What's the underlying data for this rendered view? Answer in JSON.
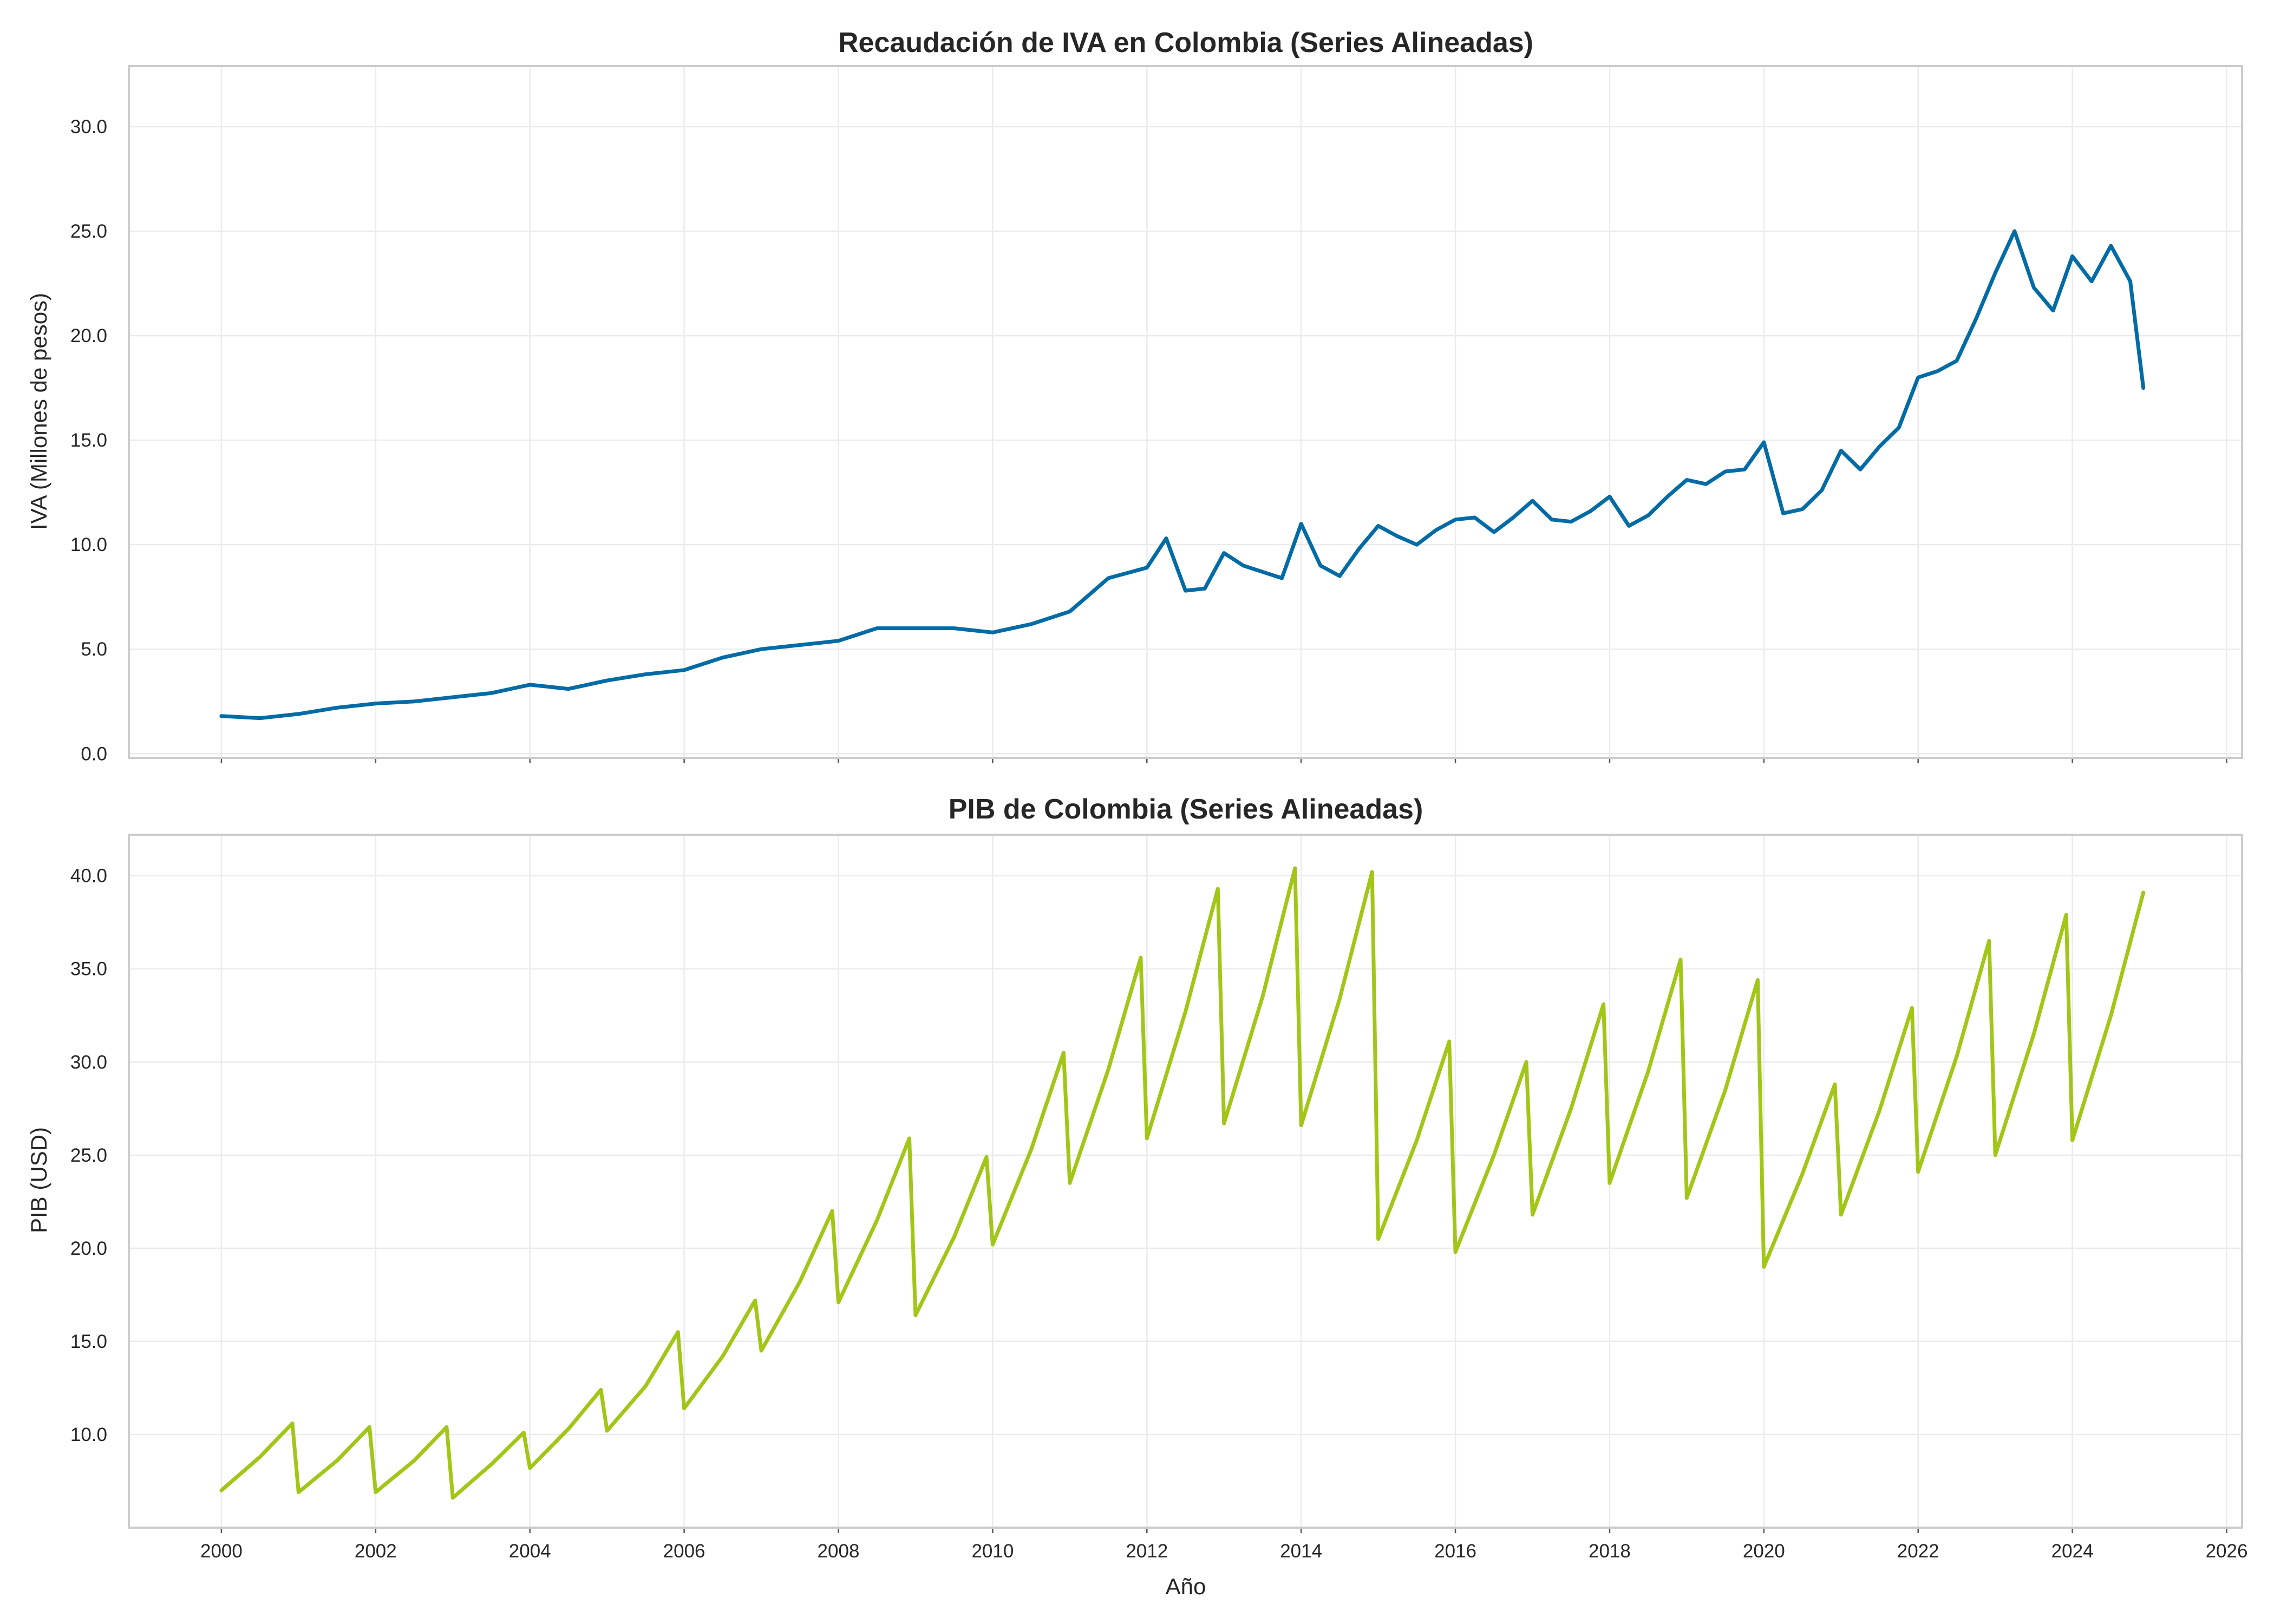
{
  "chart_data": [
    {
      "type": "line",
      "title": "Recaudación de IVA en Colombia (Series Alineadas)",
      "xlabel": "",
      "ylabel": "IVA (Millones de pesos)",
      "xlim": [
        1998.8,
        2026.2
      ],
      "ylim": [
        -0.2,
        32.9
      ],
      "grid": true,
      "color": "#006BA4",
      "yticks": [
        "0.0",
        "5.0",
        "10.0",
        "15.0",
        "20.0",
        "25.0",
        "30.0"
      ],
      "xticks": [],
      "series": [
        {
          "x": [
            2000.0,
            2000.5,
            2001.0,
            2001.5,
            2002.0,
            2002.5,
            2003.0,
            2003.5,
            2004.0,
            2004.5,
            2005.0,
            2005.5,
            2006.0,
            2006.5,
            2007.0,
            2007.5,
            2008.0,
            2008.5,
            2009.0,
            2009.5,
            2010.0,
            2010.5,
            2011.0,
            2011.5,
            2012.0,
            2012.25,
            2012.5,
            2012.75,
            2013.0,
            2013.25,
            2013.5,
            2013.75,
            2014.0,
            2014.25,
            2014.5,
            2014.75,
            2015.0,
            2015.25,
            2015.5,
            2015.75,
            2016.0,
            2016.25,
            2016.5,
            2016.75,
            2017.0,
            2017.25,
            2017.5,
            2017.75,
            2018.0,
            2018.25,
            2018.5,
            2018.75,
            2019.0,
            2019.25,
            2019.5,
            2019.75,
            2020.0,
            2020.25,
            2020.5,
            2020.75,
            2021.0,
            2021.25,
            2021.5,
            2021.75,
            2022.0,
            2022.25,
            2022.5,
            2022.75,
            2023.0,
            2023.25,
            2023.5,
            2023.75,
            2024.0,
            2024.25,
            2024.5,
            2024.75,
            2024.92
          ],
          "values": [
            1.8,
            1.7,
            1.9,
            2.2,
            2.4,
            2.5,
            2.7,
            2.9,
            3.3,
            3.1,
            3.5,
            3.8,
            4.0,
            4.6,
            5.0,
            5.2,
            5.4,
            6.0,
            6.0,
            6.0,
            5.8,
            6.2,
            6.8,
            8.4,
            8.9,
            10.3,
            7.8,
            7.9,
            9.6,
            9.0,
            8.7,
            8.4,
            11.0,
            9.0,
            8.5,
            9.8,
            10.9,
            10.4,
            10.0,
            10.7,
            11.2,
            11.3,
            10.6,
            11.3,
            12.1,
            11.2,
            11.1,
            11.6,
            12.3,
            10.9,
            11.4,
            12.3,
            13.1,
            12.9,
            13.5,
            13.6,
            14.9,
            11.5,
            11.7,
            12.6,
            14.5,
            13.6,
            14.7,
            15.6,
            18.0,
            18.3,
            18.8,
            20.8,
            23.0,
            25.0,
            22.3,
            21.2,
            23.8,
            22.6,
            24.3,
            22.6,
            17.5
          ]
        }
      ]
    },
    {
      "type": "line",
      "title": "PIB de Colombia (Series Alineadas)",
      "xlabel": "Año",
      "ylabel": "PIB (USD)",
      "xlim": [
        1998.8,
        2026.2
      ],
      "ylim": [
        5.0,
        42.2
      ],
      "grid": true,
      "color": "#A2C617",
      "yticks": [
        "10.0",
        "15.0",
        "20.0",
        "25.0",
        "30.0",
        "35.0",
        "40.0"
      ],
      "xticks": [
        "2000",
        "2002",
        "2004",
        "2006",
        "2008",
        "2010",
        "2012",
        "2014",
        "2016",
        "2018",
        "2020",
        "2022",
        "2024",
        "2026"
      ],
      "series": [
        {
          "x": [
            2000.0,
            2000.5,
            2000.92,
            2001.0,
            2001.5,
            2001.92,
            2002.0,
            2002.5,
            2002.92,
            2003.0,
            2003.5,
            2003.92,
            2004.0,
            2004.5,
            2004.92,
            2005.0,
            2005.5,
            2005.92,
            2006.0,
            2006.5,
            2006.92,
            2007.0,
            2007.5,
            2007.92,
            2008.0,
            2008.5,
            2008.92,
            2009.0,
            2009.5,
            2009.92,
            2010.0,
            2010.5,
            2010.92,
            2011.0,
            2011.5,
            2011.92,
            2012.0,
            2012.5,
            2012.92,
            2013.0,
            2013.5,
            2013.92,
            2014.0,
            2014.5,
            2014.92,
            2015.0,
            2015.5,
            2015.92,
            2016.0,
            2016.5,
            2016.92,
            2017.0,
            2017.5,
            2017.92,
            2018.0,
            2018.5,
            2018.92,
            2019.0,
            2019.5,
            2019.92,
            2020.0,
            2020.5,
            2020.92,
            2021.0,
            2021.5,
            2021.92,
            2022.0,
            2022.5,
            2022.92,
            2023.0,
            2023.5,
            2023.92,
            2024.0,
            2024.5,
            2024.92
          ],
          "values": [
            7.0,
            8.8,
            10.6,
            6.9,
            8.6,
            10.4,
            6.9,
            8.6,
            10.4,
            6.6,
            8.4,
            10.1,
            8.2,
            10.3,
            12.4,
            10.2,
            12.6,
            15.5,
            11.4,
            14.2,
            17.2,
            14.5,
            18.2,
            22.0,
            17.1,
            21.5,
            25.9,
            16.4,
            20.6,
            24.9,
            20.2,
            25.3,
            30.5,
            23.5,
            29.6,
            35.6,
            25.9,
            32.7,
            39.3,
            26.7,
            33.5,
            40.4,
            26.6,
            33.4,
            40.2,
            20.5,
            25.8,
            31.1,
            19.8,
            25.0,
            30.0,
            21.8,
            27.5,
            33.1,
            23.5,
            29.5,
            35.5,
            22.7,
            28.5,
            34.4,
            19.0,
            24.0,
            28.8,
            21.8,
            27.4,
            32.9,
            24.1,
            30.3,
            36.5,
            25.0,
            31.5,
            37.9,
            25.8,
            32.5,
            39.1
          ]
        }
      ]
    }
  ]
}
